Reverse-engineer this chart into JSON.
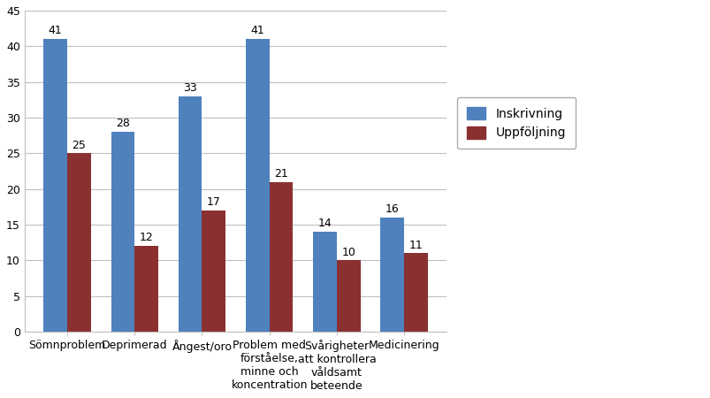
{
  "categories": [
    "Sömnproblem",
    "Deprimerad",
    "Ångest/oro",
    "Problem med\nförståelse,\nminne och\nkoncentration",
    "Svårigheter\natt kontrollera\nvåldsamt\nbeteende",
    "Medicinering"
  ],
  "inskrivning": [
    41,
    28,
    33,
    41,
    14,
    16
  ],
  "uppfoljning": [
    25,
    12,
    17,
    21,
    10,
    11
  ],
  "bar_color_blue": "#4F81BD",
  "bar_color_red": "#8B3030",
  "legend_blue": "Inskrivning",
  "legend_red": "Uppföljning",
  "ylim": [
    0,
    45
  ],
  "yticks": [
    0,
    5,
    10,
    15,
    20,
    25,
    30,
    35,
    40,
    45
  ],
  "background_color": "#FFFFFF",
  "plot_bg_color": "#FFFFFF",
  "grid_color": "#C0C0C0",
  "bar_width": 0.35,
  "label_fontsize": 9,
  "tick_fontsize": 9,
  "legend_fontsize": 10
}
